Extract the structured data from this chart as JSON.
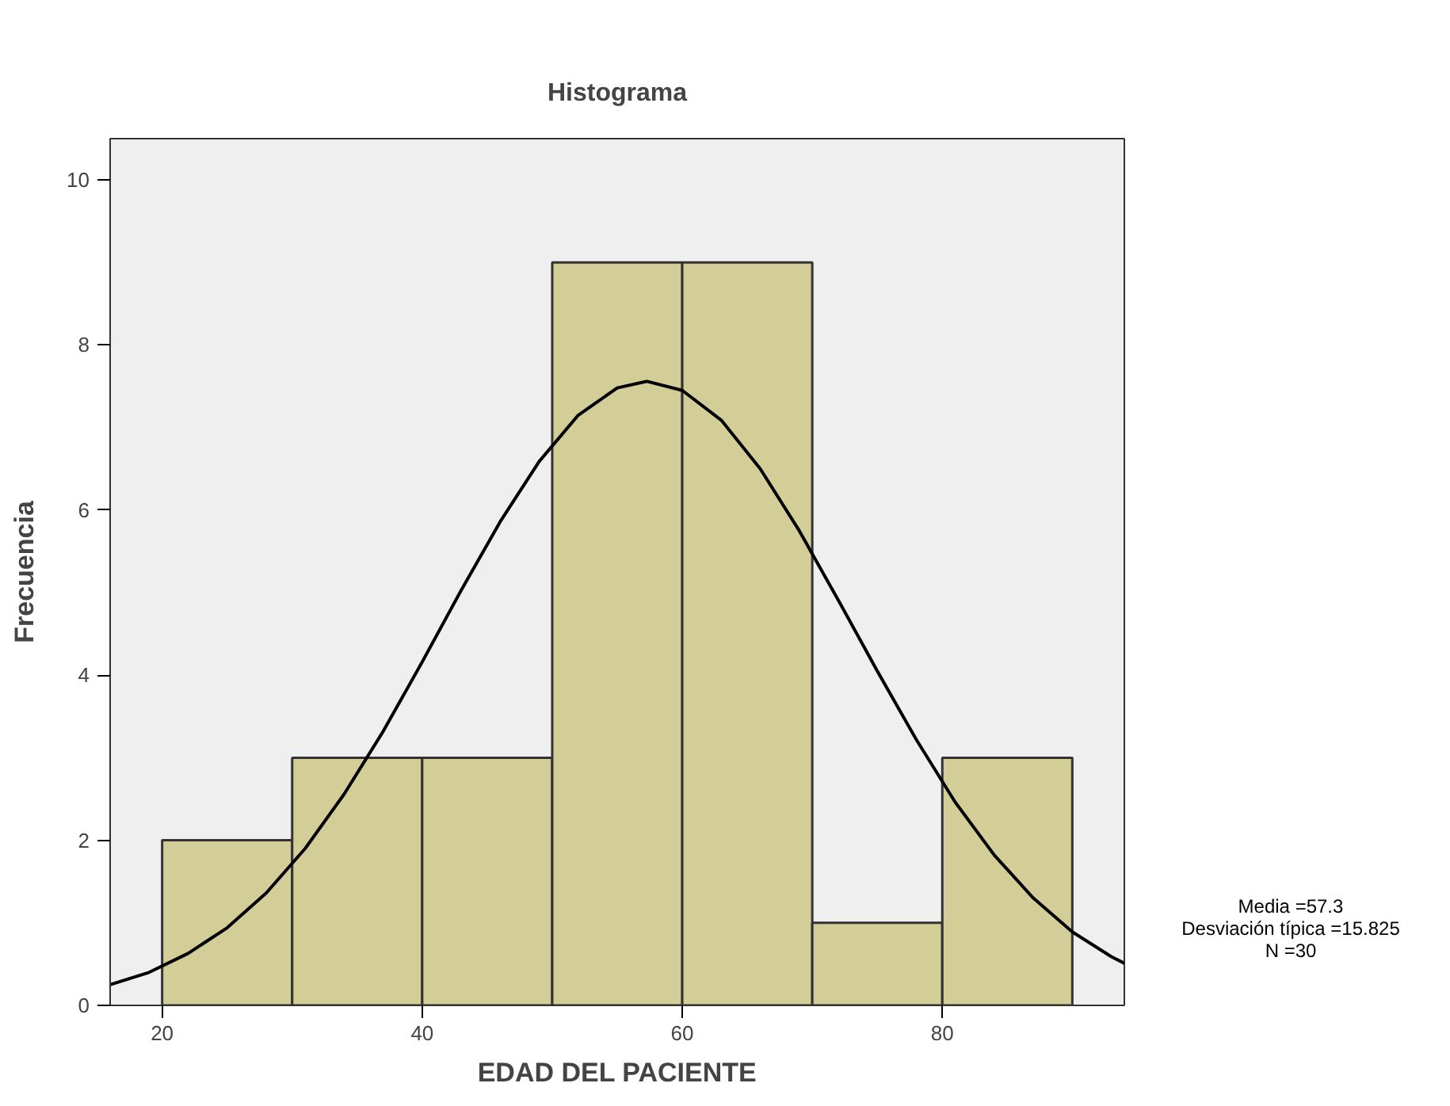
{
  "chart_data": {
    "type": "histogram",
    "title": "Histograma",
    "xlabel": "EDAD DEL PACIENTE",
    "ylabel": "Frecuencia",
    "bins": [
      20,
      30,
      40,
      50,
      60,
      70,
      80,
      90
    ],
    "values": [
      2,
      3,
      3,
      9,
      9,
      1,
      3
    ],
    "color": "#d3ce97",
    "series": [
      {
        "type": "line",
        "color": "#000000",
        "x": [
          16,
          19,
          22,
          25,
          28,
          31,
          34,
          37,
          40,
          43,
          46,
          49,
          52,
          55,
          57.3,
          60,
          63,
          66,
          69,
          72,
          75,
          78,
          81,
          84,
          87,
          90,
          93,
          94
        ],
        "values": [
          0.25,
          0.4,
          0.63,
          0.94,
          1.36,
          1.9,
          2.56,
          3.32,
          4.16,
          5.03,
          5.86,
          6.59,
          7.15,
          7.48,
          7.56,
          7.45,
          7.09,
          6.5,
          5.75,
          4.91,
          4.05,
          3.22,
          2.46,
          1.82,
          1.3,
          0.89,
          0.59,
          0.51
        ]
      }
    ],
    "xlim": [
      16,
      94
    ],
    "xticks": [
      20,
      40,
      60,
      80
    ],
    "ylim": [
      0,
      10.5
    ],
    "yticks": [
      0,
      2,
      4,
      6,
      8,
      10
    ],
    "grid": false,
    "annotations": [
      "Media =57.3",
      "Desviación típica =15.825",
      "N =30"
    ]
  }
}
